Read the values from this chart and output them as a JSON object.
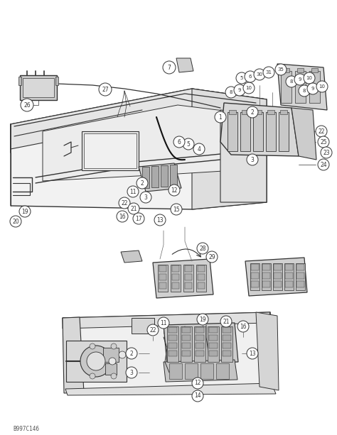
{
  "bg_color": "#ffffff",
  "dark_color": "#333333",
  "med_color": "#666666",
  "light_color": "#aaaaaa",
  "fill_light": "#e8e8e8",
  "fill_med": "#cccccc",
  "fill_dark": "#aaaaaa",
  "watermark": "B997C146",
  "fig_width": 4.74,
  "fig_height": 6.13,
  "dpi": 100
}
